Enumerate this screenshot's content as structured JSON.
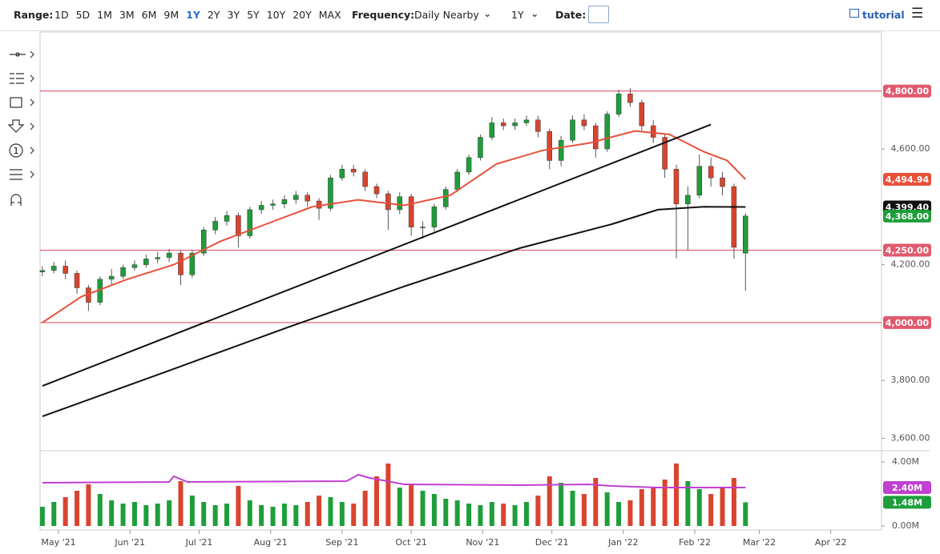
{
  "toolbar": {
    "range_label": "Range:",
    "ranges": [
      "1D",
      "5D",
      "1M",
      "3M",
      "6M",
      "9M",
      "1Y",
      "2Y",
      "3Y",
      "5Y",
      "10Y",
      "20Y",
      "MAX"
    ],
    "active_range": 6,
    "active_color": "#2a6fd6",
    "frequency_label": "Frequency:",
    "frequency": "Daily Nearby",
    "period": "1Y",
    "date_label": "Date:",
    "tutorial": "tutorial",
    "tool_number": "1"
  },
  "chart_data": [
    {
      "type": "candlestick",
      "up_color": "#1e9e3a",
      "down_color": "#d9442f",
      "x": [
        -7,
        -2,
        3,
        8,
        13,
        18,
        23,
        28,
        33,
        38,
        43,
        48,
        53,
        58,
        63,
        68,
        73,
        78,
        83,
        88,
        93,
        98,
        103,
        108,
        113,
        118,
        123,
        128,
        133,
        138,
        143,
        148,
        153,
        158,
        163,
        168,
        173,
        178,
        183,
        188,
        193,
        198,
        203,
        208,
        213,
        218,
        223,
        228,
        233,
        238,
        243,
        248,
        253,
        258,
        263,
        268,
        273,
        278,
        283,
        288,
        293,
        298
      ],
      "open": [
        4175,
        4180,
        4195,
        4170,
        4120,
        4070,
        4150,
        4160,
        4190,
        4200,
        4220,
        4225,
        4240,
        4165,
        4240,
        4320,
        4350,
        4370,
        4300,
        4390,
        4405,
        4410,
        4425,
        4440,
        4420,
        4395,
        4500,
        4530,
        4520,
        4470,
        4445,
        4390,
        4435,
        4330,
        4330,
        4400,
        4460,
        4520,
        4570,
        4640,
        4690,
        4680,
        4690,
        4700,
        4660,
        4560,
        4630,
        4700,
        4680,
        4600,
        4720,
        4790,
        4760,
        4680,
        4640,
        4530,
        4410,
        4440,
        4540,
        4500,
        4470,
        4240
      ],
      "high": [
        4195,
        4210,
        4215,
        4180,
        4130,
        4160,
        4185,
        4200,
        4215,
        4235,
        4245,
        4255,
        4250,
        4250,
        4330,
        4365,
        4385,
        4380,
        4400,
        4420,
        4425,
        4440,
        4455,
        4450,
        4430,
        4510,
        4545,
        4545,
        4530,
        4480,
        4455,
        4450,
        4445,
        4350,
        4410,
        4470,
        4530,
        4580,
        4650,
        4710,
        4705,
        4705,
        4715,
        4715,
        4670,
        4645,
        4715,
        4720,
        4690,
        4730,
        4805,
        4810,
        4770,
        4700,
        4650,
        4545,
        4470,
        4580,
        4570,
        4520,
        4480,
        4378
      ],
      "low": [
        4160,
        4170,
        4150,
        4100,
        4040,
        4060,
        4130,
        4150,
        4180,
        4190,
        4205,
        4210,
        4130,
        4155,
        4230,
        4305,
        4335,
        4260,
        4290,
        4375,
        4390,
        4395,
        4410,
        4400,
        4355,
        4385,
        4490,
        4505,
        4455,
        4430,
        4320,
        4375,
        4300,
        4290,
        4315,
        4390,
        4450,
        4510,
        4560,
        4630,
        4665,
        4665,
        4680,
        4640,
        4530,
        4540,
        4620,
        4665,
        4570,
        4590,
        4710,
        4745,
        4660,
        4620,
        4500,
        4222,
        4250,
        4430,
        4470,
        4440,
        4220,
        4110
      ],
      "close": [
        4180,
        4195,
        4170,
        4120,
        4070,
        4150,
        4160,
        4190,
        4200,
        4220,
        4225,
        4240,
        4165,
        4240,
        4320,
        4350,
        4370,
        4300,
        4390,
        4405,
        4410,
        4425,
        4440,
        4420,
        4395,
        4500,
        4530,
        4520,
        4470,
        4445,
        4390,
        4435,
        4330,
        4330,
        4400,
        4460,
        4520,
        4570,
        4640,
        4690,
        4680,
        4690,
        4700,
        4660,
        4560,
        4630,
        4700,
        4680,
        4600,
        4720,
        4790,
        4760,
        4680,
        4640,
        4530,
        4410,
        4440,
        4540,
        4500,
        4470,
        4260,
        4368
      ],
      "lines": [
        {
          "name": "50-day MA",
          "color": "#e8503a",
          "x": [
            -7,
            10,
            30,
            50,
            70,
            90,
            110,
            130,
            150,
            170,
            190,
            210,
            230,
            250,
            265,
            280,
            290,
            298
          ],
          "values": [
            4000,
            4090,
            4150,
            4200,
            4280,
            4340,
            4400,
            4424,
            4405,
            4440,
            4548,
            4595,
            4620,
            4662,
            4650,
            4590,
            4560,
            4494.94
          ]
        },
        {
          "name": "200-day MA",
          "color": "#111111",
          "x": [
            -7,
            50,
            100,
            150,
            200,
            240,
            260,
            280,
            298
          ],
          "values": [
            3676,
            3840,
            3985,
            4125,
            4257,
            4340,
            4390,
            4400,
            4399.4
          ]
        },
        {
          "name": "trend",
          "color": "#111111",
          "x": [
            -7,
            283
          ],
          "values": [
            3781,
            4684
          ]
        }
      ],
      "hlines": [
        {
          "value": 4800,
          "label": "4,800.00"
        },
        {
          "value": 4250,
          "label": "4,250.00"
        },
        {
          "value": 4000,
          "label": "4,000.00"
        }
      ],
      "hline_color": "#e05a6e",
      "price_labels": [
        {
          "value": 4494.94,
          "label": "4,494.94",
          "color": "#e8503a"
        },
        {
          "value": 4399.4,
          "label": "4,399.40",
          "color": "#111111"
        },
        {
          "value": 4368,
          "label": "4,368.00",
          "color": "#1e9e3a"
        }
      ],
      "xlim": [
        -8,
        357
      ],
      "ylim": [
        3560,
        4990
      ],
      "yticks": [
        {
          "value": 4600,
          "label": "4,600.00"
        },
        {
          "value": 4200,
          "label": "4,200.00"
        },
        {
          "value": 3800,
          "label": "3,800.00"
        },
        {
          "value": 3600,
          "label": "3,600.00"
        }
      ],
      "xticks": [
        {
          "value": 0,
          "label": "May '21"
        },
        {
          "value": 31,
          "label": "Jun '21"
        },
        {
          "value": 61,
          "label": "Jul '21"
        },
        {
          "value": 92,
          "label": "Aug '21"
        },
        {
          "value": 123,
          "label": "Sep '21"
        },
        {
          "value": 153,
          "label": "Oct '21"
        },
        {
          "value": 184,
          "label": "Nov '21"
        },
        {
          "value": 214,
          "label": "Dec '21"
        },
        {
          "value": 245,
          "label": "Jan '22"
        },
        {
          "value": 276,
          "label": "Feb '22"
        },
        {
          "value": 304,
          "label": "Mar '22"
        },
        {
          "value": 335,
          "label": "Apr '22"
        }
      ]
    },
    {
      "type": "bar",
      "values": [
        1.2,
        1.5,
        1.8,
        2.2,
        2.6,
        2.0,
        1.6,
        1.4,
        1.5,
        1.3,
        1.4,
        1.6,
        2.8,
        1.9,
        1.5,
        1.3,
        1.4,
        2.5,
        1.6,
        1.3,
        1.2,
        1.4,
        1.3,
        1.5,
        1.9,
        1.8,
        1.5,
        1.4,
        2.2,
        3.1,
        3.9,
        2.4,
        2.6,
        2.2,
        2.0,
        1.7,
        1.6,
        1.4,
        1.3,
        1.5,
        1.4,
        1.3,
        1.5,
        1.9,
        3.1,
        2.7,
        2.2,
        2.0,
        3.0,
        2.1,
        1.5,
        1.6,
        2.3,
        2.4,
        2.9,
        3.9,
        2.8,
        2.3,
        2.0,
        2.4,
        3.0,
        1.48
      ],
      "average": {
        "color": "#c040d0",
        "x": [
          -7,
          48,
          50,
          56,
          125,
          130,
          135,
          150,
          200,
          230,
          240,
          260,
          290,
          298
        ],
        "values": [
          2.7,
          2.75,
          3.1,
          2.75,
          2.8,
          3.2,
          3.0,
          2.6,
          2.55,
          2.6,
          2.5,
          2.4,
          2.4,
          2.4
        ]
      },
      "ylim": [
        0,
        4.6
      ],
      "yticks": [
        {
          "value": 4,
          "label": "4.00M"
        },
        {
          "value": 0,
          "label": "0.00M"
        }
      ],
      "value_badges": [
        {
          "value": 2.4,
          "label": "2.40M",
          "color": "#c040d0"
        },
        {
          "value": 1.48,
          "label": "1.48M",
          "color": "#1e9e3a"
        }
      ]
    }
  ]
}
